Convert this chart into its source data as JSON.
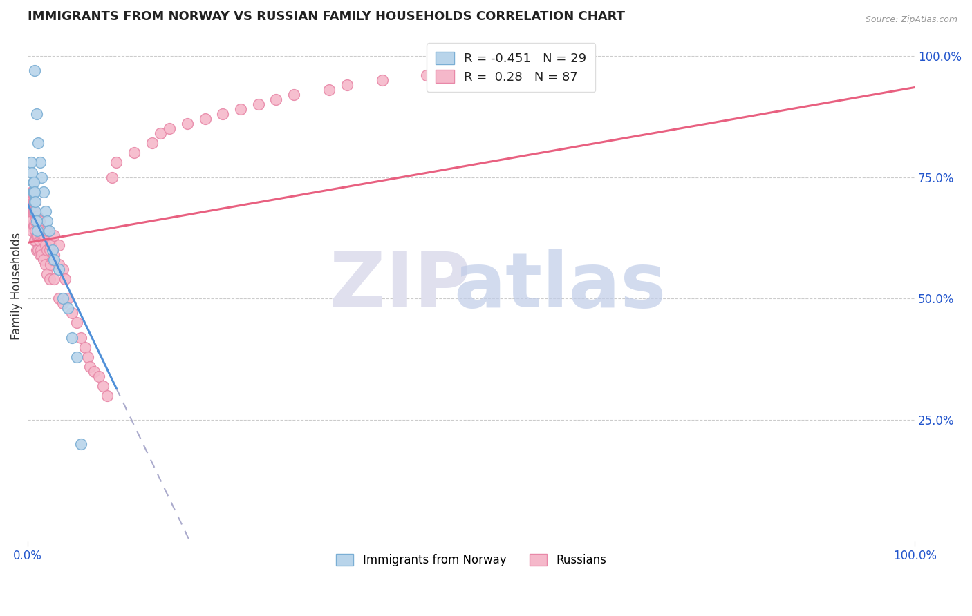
{
  "title": "IMMIGRANTS FROM NORWAY VS RUSSIAN FAMILY HOUSEHOLDS CORRELATION CHART",
  "source": "Source: ZipAtlas.com",
  "ylabel": "Family Households",
  "ylabel_right_ticks": [
    "100.0%",
    "75.0%",
    "50.0%",
    "25.0%"
  ],
  "ylabel_right_vals": [
    1.0,
    0.75,
    0.5,
    0.25
  ],
  "legend_bottom": [
    "Immigrants from Norway",
    "Russians"
  ],
  "r_norway": -0.451,
  "n_norway": 29,
  "r_russian": 0.28,
  "n_russian": 87,
  "norway_color": "#b8d4ea",
  "norway_edge": "#7aaed4",
  "russian_color": "#f5b8ca",
  "russian_edge": "#e888a8",
  "trend_norway_color": "#5090d8",
  "trend_russian_color": "#e86080",
  "dashed_color": "#aaaacc",
  "background_color": "#ffffff",
  "norway_x": [
    0.008,
    0.01,
    0.012,
    0.014,
    0.016,
    0.018,
    0.02,
    0.022,
    0.024,
    0.028,
    0.004,
    0.005,
    0.006,
    0.006,
    0.007,
    0.007,
    0.008,
    0.008,
    0.009,
    0.009,
    0.01,
    0.011,
    0.03,
    0.035,
    0.04,
    0.045,
    0.05,
    0.055,
    0.06
  ],
  "norway_y": [
    0.97,
    0.88,
    0.82,
    0.78,
    0.75,
    0.72,
    0.68,
    0.66,
    0.64,
    0.6,
    0.78,
    0.76,
    0.74,
    0.72,
    0.72,
    0.74,
    0.7,
    0.72,
    0.68,
    0.7,
    0.66,
    0.64,
    0.58,
    0.56,
    0.5,
    0.48,
    0.42,
    0.38,
    0.2
  ],
  "russian_x": [
    0.002,
    0.003,
    0.004,
    0.004,
    0.005,
    0.005,
    0.005,
    0.006,
    0.006,
    0.006,
    0.007,
    0.007,
    0.007,
    0.008,
    0.008,
    0.008,
    0.009,
    0.009,
    0.009,
    0.009,
    0.01,
    0.01,
    0.01,
    0.011,
    0.011,
    0.012,
    0.012,
    0.012,
    0.013,
    0.013,
    0.014,
    0.014,
    0.015,
    0.015,
    0.016,
    0.016,
    0.017,
    0.018,
    0.018,
    0.019,
    0.02,
    0.02,
    0.022,
    0.022,
    0.022,
    0.025,
    0.025,
    0.026,
    0.026,
    0.028,
    0.03,
    0.03,
    0.03,
    0.035,
    0.035,
    0.035,
    0.04,
    0.04,
    0.042,
    0.045,
    0.05,
    0.055,
    0.06,
    0.065,
    0.068,
    0.07,
    0.075,
    0.08,
    0.085,
    0.09,
    0.095,
    0.1,
    0.12,
    0.14,
    0.15,
    0.16,
    0.18,
    0.2,
    0.22,
    0.24,
    0.26,
    0.28,
    0.3,
    0.34,
    0.36,
    0.4,
    0.45
  ],
  "russian_y": [
    0.68,
    0.65,
    0.66,
    0.7,
    0.64,
    0.68,
    0.72,
    0.68,
    0.7,
    0.72,
    0.65,
    0.68,
    0.7,
    0.62,
    0.65,
    0.68,
    0.62,
    0.64,
    0.66,
    0.7,
    0.6,
    0.63,
    0.67,
    0.63,
    0.67,
    0.6,
    0.63,
    0.66,
    0.62,
    0.66,
    0.59,
    0.63,
    0.6,
    0.64,
    0.59,
    0.63,
    0.63,
    0.58,
    0.62,
    0.63,
    0.57,
    0.61,
    0.55,
    0.6,
    0.64,
    0.54,
    0.6,
    0.57,
    0.61,
    0.58,
    0.54,
    0.59,
    0.63,
    0.5,
    0.57,
    0.61,
    0.49,
    0.56,
    0.54,
    0.5,
    0.47,
    0.45,
    0.42,
    0.4,
    0.38,
    0.36,
    0.35,
    0.34,
    0.32,
    0.3,
    0.75,
    0.78,
    0.8,
    0.82,
    0.84,
    0.85,
    0.86,
    0.87,
    0.88,
    0.89,
    0.9,
    0.91,
    0.92,
    0.93,
    0.94,
    0.95,
    0.96
  ],
  "trend_norway_x_start": 0.0,
  "trend_norway_x_solid_end": 0.1,
  "trend_norway_x_dash_end": 1.0,
  "trend_russian_x_start": 0.0,
  "trend_russian_x_end": 1.0,
  "xmin": 0.0,
  "xmax": 1.0,
  "ymin": 0.0,
  "ymax": 1.05,
  "trend_norway_y_start": 0.695,
  "trend_norway_y_solid_end": 0.315,
  "trend_russian_y_start": 0.615,
  "trend_russian_y_end": 0.935
}
